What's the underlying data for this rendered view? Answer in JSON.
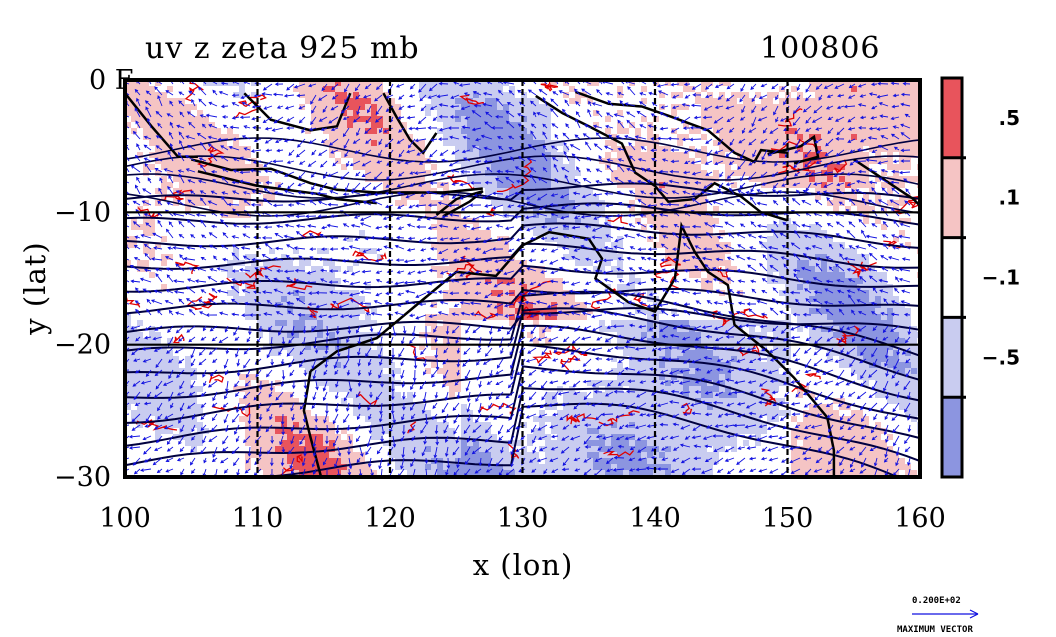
{
  "chart_data": {
    "type": "heatmap",
    "title": "uv z zeta 925 mb",
    "date_label": "100806",
    "xlabel": "x (lon)",
    "ylabel": "y (lat)",
    "xlim": [
      100,
      160
    ],
    "ylim": [
      -30,
      0
    ],
    "xticks": [
      100,
      110,
      120,
      130,
      140,
      150,
      160
    ],
    "xtick_labels": [
      "100",
      "110",
      "120",
      "130",
      "140",
      "150",
      "160"
    ],
    "yticks": [
      0,
      -10,
      -20,
      -30
    ],
    "ytick_labels": [
      "0",
      "−10",
      "−20",
      "−30"
    ],
    "y0_corner_label": "0 F",
    "grid": true,
    "layers": {
      "shading": "relative vorticity (zeta)",
      "contours": "geopotential height (z)",
      "vectors": "wind (u, v)",
      "coastlines": true
    },
    "colorbar": {
      "labels": [
        ".5",
        ".1",
        "−.1",
        "−.5"
      ],
      "levels": [
        0.5,
        0.1,
        -0.1,
        -0.5
      ],
      "colors": [
        "#e8545c",
        "#f5c4c4",
        "#ffffff",
        "#c9ccf0",
        "#8c95e0"
      ]
    },
    "vector_legend": {
      "value_label": "0.200E+02",
      "caption": "MAXIMUM VECTOR"
    },
    "colors": {
      "positive_line": "#e00000",
      "negative_vector": "#1010e0",
      "height_contour": "#000040"
    }
  }
}
